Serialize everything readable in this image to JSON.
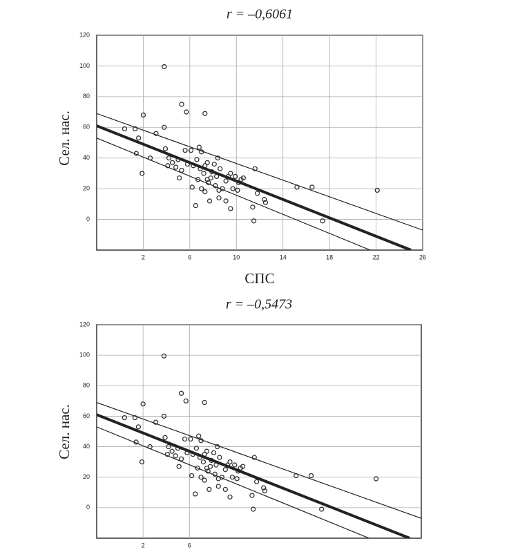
{
  "chart_data": [
    {
      "type": "scatter",
      "title": "r = –0,6061",
      "xlabel": "СПС",
      "ylabel": "Сел. нас.",
      "xlim": [
        -2,
        26
      ],
      "ylim": [
        -20,
        120
      ],
      "xticks": [
        2,
        6,
        10,
        14,
        18,
        22,
        26
      ],
      "yticks": [
        0,
        20,
        40,
        60,
        80,
        100,
        120
      ],
      "grid": true,
      "color": "#333",
      "x": [
        3.8,
        0.4,
        1.3,
        2.0,
        1.6,
        1.4,
        3.1,
        3.8,
        1.9,
        2.6,
        5.3,
        5.7,
        7.3,
        3.9,
        4.2,
        4.1,
        4.5,
        4.8,
        5.0,
        5.3,
        5.1,
        5.6,
        6.1,
        5.8,
        6.3,
        6.6,
        6.8,
        7.0,
        6.9,
        7.2,
        7.3,
        7.5,
        7.5,
        7.6,
        7.0,
        7.3,
        6.2,
        6.5,
        7.7,
        7.9,
        8.1,
        8.4,
        8.6,
        8.3,
        8.2,
        8.5,
        8.8,
        9.1,
        9.3,
        9.1,
        9.5,
        9.7,
        9.5,
        9.9,
        10.2,
        10.4,
        10.6,
        10.1,
        11.6,
        11.4,
        11.5,
        11.8,
        12.4,
        12.5,
        15.2,
        16.5,
        17.4,
        22.1,
        8.5,
        6.7,
        7.8
      ],
      "y": [
        99.5,
        59,
        59,
        68,
        53,
        43,
        56,
        60,
        30,
        40,
        75,
        70,
        69,
        46,
        40,
        35,
        37,
        34,
        39,
        32,
        27,
        45,
        45,
        36,
        35,
        39,
        47,
        44,
        33,
        30,
        35,
        37,
        26,
        24,
        20,
        18,
        21,
        9,
        12,
        31,
        36,
        40,
        33,
        28,
        22,
        19,
        20,
        25,
        28,
        12,
        7,
        20,
        30,
        28,
        24,
        26,
        27,
        19,
        33,
        8,
        -1,
        17,
        13,
        11,
        21,
        21,
        -1,
        19,
        14,
        26,
        27
      ],
      "lines": [
        {
          "x": [
            -2,
            25
          ],
          "y": [
            61,
            -20
          ],
          "weight": "heavy"
        },
        {
          "x": [
            -2,
            26
          ],
          "y": [
            69,
            -7
          ],
          "weight": "light"
        },
        {
          "x": [
            -2,
            21.5
          ],
          "y": [
            53,
            -20
          ],
          "weight": "light"
        }
      ]
    },
    {
      "type": "scatter",
      "title": "r = –0,5473",
      "ylabel": "Сел. нас.",
      "xlim": [
        -2,
        26
      ],
      "ylim": [
        -20,
        120
      ],
      "xticks": [
        2,
        6
      ],
      "yticks": [
        0,
        20,
        40,
        60,
        80,
        100,
        120
      ],
      "grid": true,
      "color": "#333",
      "x": [
        3.8,
        0.4,
        1.3,
        2.0,
        1.6,
        1.4,
        3.1,
        3.8,
        1.9,
        2.6,
        5.3,
        5.7,
        7.3,
        3.9,
        4.2,
        4.1,
        4.5,
        4.8,
        5.0,
        5.3,
        5.1,
        5.6,
        6.1,
        5.8,
        6.3,
        6.6,
        6.8,
        7.0,
        6.9,
        7.2,
        7.3,
        7.5,
        7.5,
        7.6,
        7.0,
        7.3,
        6.2,
        6.5,
        7.7,
        7.9,
        8.1,
        8.4,
        8.6,
        8.3,
        8.2,
        8.5,
        8.8,
        9.1,
        9.3,
        9.1,
        9.5,
        9.7,
        9.5,
        9.9,
        10.2,
        10.4,
        10.6,
        10.1,
        11.6,
        11.4,
        11.5,
        11.8,
        12.4,
        12.5,
        15.2,
        16.5,
        17.4,
        22.1,
        8.5,
        6.7,
        7.8
      ],
      "y": [
        99.5,
        59,
        59,
        68,
        53,
        43,
        56,
        60,
        30,
        40,
        75,
        70,
        69,
        46,
        40,
        35,
        37,
        34,
        39,
        32,
        27,
        45,
        45,
        36,
        35,
        39,
        47,
        44,
        33,
        30,
        35,
        37,
        26,
        24,
        20,
        18,
        21,
        9,
        12,
        31,
        36,
        40,
        33,
        28,
        22,
        19,
        20,
        25,
        28,
        12,
        7,
        20,
        30,
        28,
        24,
        26,
        27,
        19,
        33,
        8,
        -1,
        17,
        13,
        11,
        21,
        21,
        -1,
        19,
        14,
        26,
        27
      ],
      "lines": [
        {
          "x": [
            -2,
            25
          ],
          "y": [
            61,
            -20
          ],
          "weight": "heavy"
        },
        {
          "x": [
            -2,
            26
          ],
          "y": [
            69,
            -7
          ],
          "weight": "light"
        },
        {
          "x": [
            -2,
            21.5
          ],
          "y": [
            53,
            -20
          ],
          "weight": "light"
        }
      ]
    }
  ]
}
